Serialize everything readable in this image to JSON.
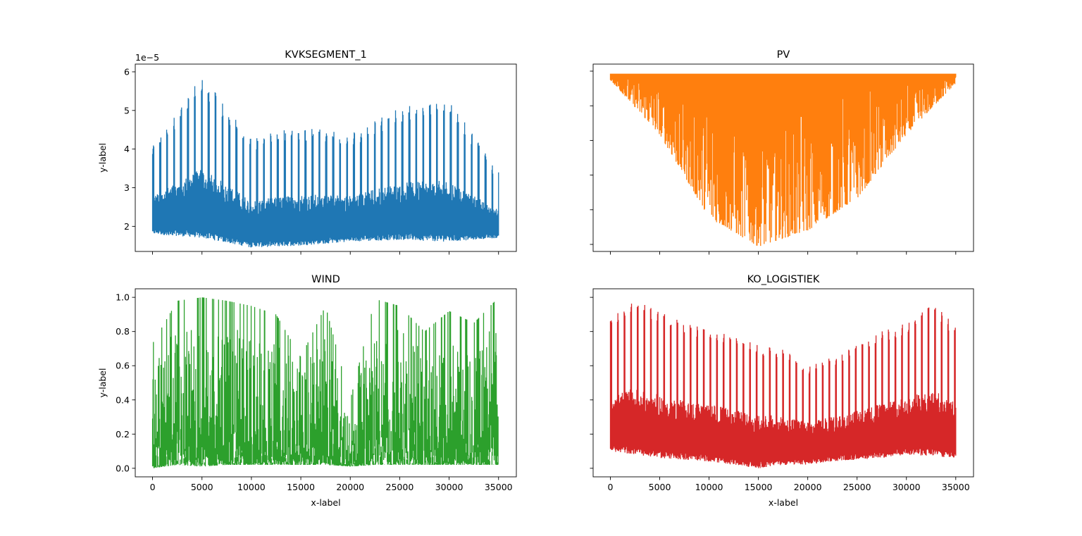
{
  "figure": {
    "shared_x_label": "x-label",
    "shared_y_label": "y-label"
  },
  "chart_data": [
    {
      "type": "line",
      "title": "KVKSEGMENT_1",
      "xlabel": "",
      "ylabel": "y-label",
      "y_offset_text": "1e−5",
      "color": "#1f77b4",
      "xlim": [
        -1750,
        36800
      ],
      "ylim": [
        1.35,
        6.2
      ],
      "y_ticks": [
        2,
        3,
        4,
        5,
        6
      ],
      "y_tick_labels": [
        "2",
        "3",
        "4",
        "5",
        "6"
      ],
      "x_ticks": [
        0,
        5000,
        10000,
        15000,
        20000,
        25000,
        30000,
        35000
      ],
      "x_tick_labels": [],
      "x": [
        0,
        5000,
        10000,
        15000,
        20000,
        25000,
        30000,
        35000
      ],
      "upper_envelope": [
        4.1,
        5.9,
        4.3,
        4.6,
        4.4,
        5.1,
        5.3,
        3.4
      ],
      "lower_envelope": [
        1.8,
        1.7,
        1.45,
        1.5,
        1.6,
        1.65,
        1.6,
        1.7
      ],
      "sample_count": 35040
    },
    {
      "type": "line",
      "title": "PV",
      "xlabel": "",
      "ylabel": "",
      "color": "#ff7f0e",
      "xlim": [
        -1750,
        36800
      ],
      "ylim": [
        0.35,
        6.2
      ],
      "x_ticks": [
        0,
        5000,
        10000,
        15000,
        20000,
        25000,
        30000,
        35000
      ],
      "x_tick_labels": [],
      "y_tick_labels": [],
      "x": [
        0,
        5000,
        10000,
        15000,
        20000,
        25000,
        30000,
        35000
      ],
      "upper_envelope": [
        5.9,
        5.9,
        5.9,
        5.9,
        5.9,
        5.9,
        5.9,
        5.9
      ],
      "lower_envelope": [
        5.7,
        4.0,
        1.4,
        0.5,
        1.0,
        2.0,
        4.0,
        5.6
      ],
      "sample_count": 35040
    },
    {
      "type": "line",
      "title": "WIND",
      "xlabel": "x-label",
      "ylabel": "y-label",
      "color": "#2ca02c",
      "xlim": [
        -1750,
        36800
      ],
      "ylim": [
        -0.05,
        1.05
      ],
      "y_ticks": [
        0.0,
        0.2,
        0.4,
        0.6,
        0.8,
        1.0
      ],
      "y_tick_labels": [
        "0.0",
        "0.2",
        "0.4",
        "0.6",
        "0.8",
        "1.0"
      ],
      "x_ticks": [
        0,
        5000,
        10000,
        15000,
        20000,
        25000,
        30000,
        35000
      ],
      "x_tick_labels": [
        "0",
        "5000",
        "10000",
        "15000",
        "20000",
        "25000",
        "30000",
        "35000"
      ],
      "x": [
        0,
        2500,
        5000,
        7500,
        10000,
        12500,
        15000,
        17500,
        20000,
        22500,
        25000,
        27500,
        30000,
        32500,
        35000
      ],
      "upper_envelope": [
        0.73,
        0.98,
        1.0,
        0.98,
        0.95,
        0.9,
        0.65,
        0.95,
        0.4,
        0.99,
        0.95,
        0.8,
        0.92,
        0.85,
        1.0
      ],
      "lower_envelope": [
        0.0,
        0.02,
        0.01,
        0.02,
        0.02,
        0.02,
        0.02,
        0.02,
        0.01,
        0.02,
        0.02,
        0.02,
        0.02,
        0.02,
        0.02
      ],
      "sample_count": 35040
    },
    {
      "type": "line",
      "title": "KO_LOGISTIEK",
      "xlabel": "x-label",
      "ylabel": "",
      "color": "#d62728",
      "xlim": [
        -1750,
        36800
      ],
      "ylim": [
        -0.05,
        1.05
      ],
      "x_ticks": [
        0,
        5000,
        10000,
        15000,
        20000,
        25000,
        30000,
        35000
      ],
      "x_tick_labels": [
        "0",
        "5000",
        "10000",
        "15000",
        "20000",
        "25000",
        "30000",
        "35000"
      ],
      "y_tick_labels": [],
      "x": [
        0,
        2500,
        5000,
        7500,
        10000,
        12500,
        15000,
        17500,
        20000,
        22500,
        25000,
        27500,
        30000,
        32500,
        35000
      ],
      "upper_envelope": [
        0.88,
        0.98,
        0.92,
        0.85,
        0.82,
        0.77,
        0.72,
        0.7,
        0.6,
        0.65,
        0.72,
        0.8,
        0.85,
        0.98,
        0.83
      ],
      "lower_envelope": [
        0.1,
        0.08,
        0.06,
        0.05,
        0.04,
        0.02,
        0.0,
        0.02,
        0.02,
        0.04,
        0.05,
        0.06,
        0.08,
        0.07,
        0.06
      ],
      "sample_count": 35040
    }
  ]
}
